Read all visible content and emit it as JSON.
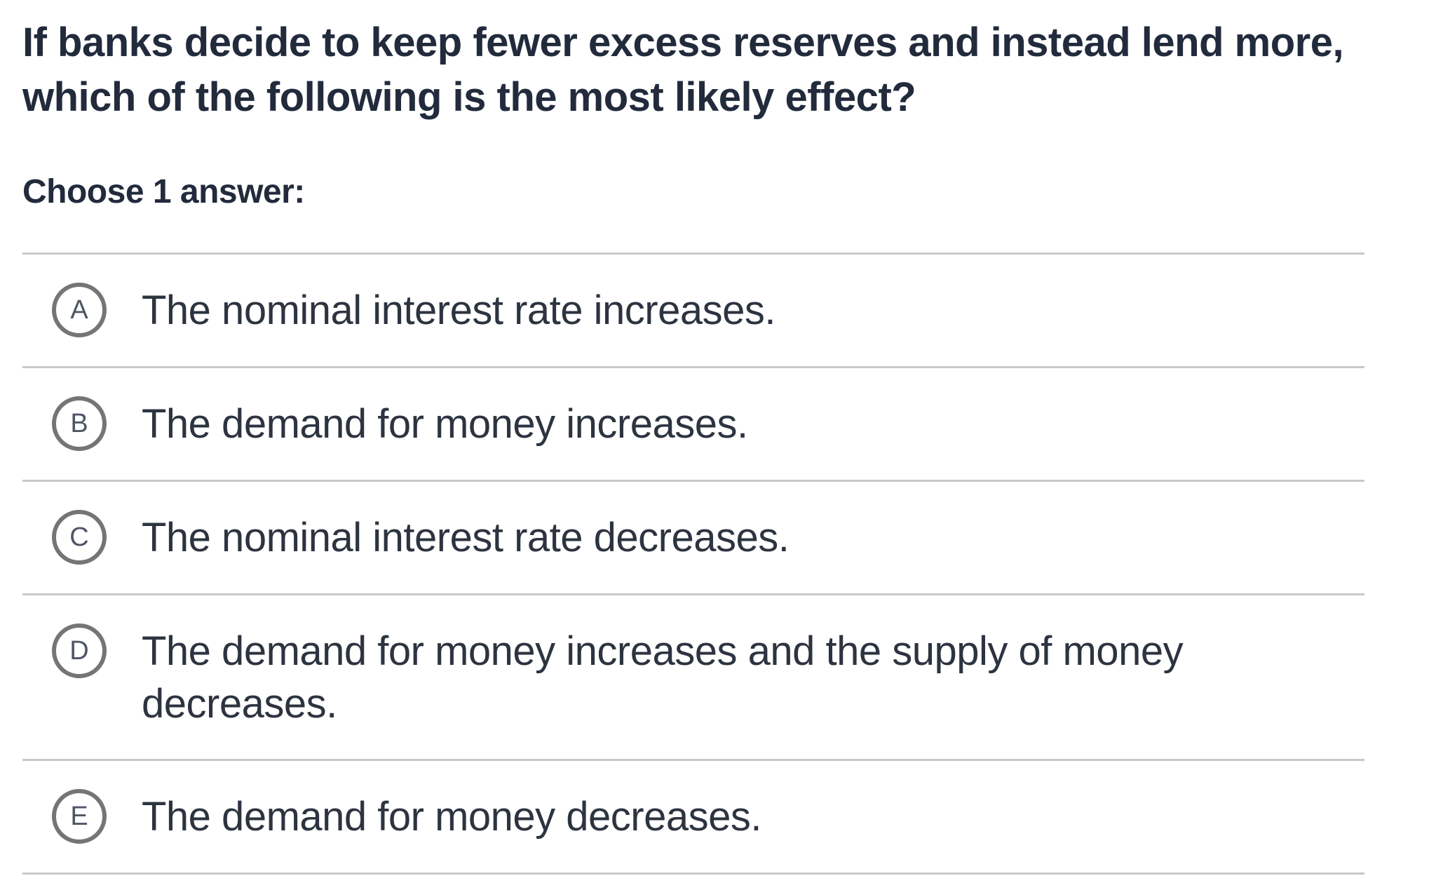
{
  "question": {
    "title": "If banks decide to keep fewer excess reserves and instead lend more,\nwhich of the following is the most likely effect?",
    "choose_label": "Choose 1 answer:"
  },
  "options": [
    {
      "letter": "A",
      "text": "The nominal interest rate increases."
    },
    {
      "letter": "B",
      "text": "The demand for money increases."
    },
    {
      "letter": "C",
      "text": "The nominal interest rate decreases."
    },
    {
      "letter": "D",
      "text": "The demand for money increases and the supply of money\ndecreases."
    },
    {
      "letter": "E",
      "text": "The demand for money decreases."
    }
  ],
  "colors": {
    "question_text": "#222b3c",
    "answer_text": "#2c3440",
    "radio_ring": "#757575",
    "radio_letter": "#4e5666",
    "divider": "#c8c8c8",
    "background": "#ffffff"
  }
}
